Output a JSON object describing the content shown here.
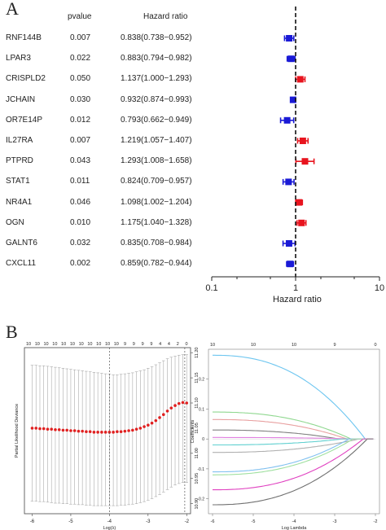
{
  "panel_a_letter": "A",
  "panel_b_letter": "B",
  "forest": {
    "pvalue_header": "pvalue",
    "hr_header": "Hazard ratio",
    "xlabel": "Hazard ratio",
    "xticks": [
      "0.1",
      "1",
      "10"
    ]
  },
  "colors": {
    "risk": "#e8141e",
    "protective": "#1a1ad6",
    "cv_points": "#e02020"
  },
  "chart_data": [
    {
      "type": "forest",
      "xlabel": "Hazard ratio",
      "x_scale": "log10",
      "xlim": [
        0.1,
        10
      ],
      "reference_line": 1,
      "rows": [
        {
          "gene": "RNF144B",
          "pvalue": "0.007",
          "hr_text": "0.838(0.738−0.952)",
          "hr": 0.838,
          "lo": 0.738,
          "hi": 0.952
        },
        {
          "gene": "LPAR3",
          "pvalue": "0.022",
          "hr_text": "0.883(0.794−0.982)",
          "hr": 0.883,
          "lo": 0.794,
          "hi": 0.982
        },
        {
          "gene": "CRISPLD2",
          "pvalue": "0.050",
          "hr_text": "1.137(1.000−1.293)",
          "hr": 1.137,
          "lo": 1.0,
          "hi": 1.293
        },
        {
          "gene": "JCHAIN",
          "pvalue": "0.030",
          "hr_text": "0.932(0.874−0.993)",
          "hr": 0.932,
          "lo": 0.874,
          "hi": 0.993
        },
        {
          "gene": "OR7E14P",
          "pvalue": "0.012",
          "hr_text": "0.793(0.662−0.949)",
          "hr": 0.793,
          "lo": 0.662,
          "hi": 0.949
        },
        {
          "gene": "IL27RA",
          "pvalue": "0.007",
          "hr_text": "1.219(1.057−1.407)",
          "hr": 1.219,
          "lo": 1.057,
          "hi": 1.407
        },
        {
          "gene": "PTPRD",
          "pvalue": "0.043",
          "hr_text": "1.293(1.008−1.658)",
          "hr": 1.293,
          "lo": 1.008,
          "hi": 1.658
        },
        {
          "gene": "STAT1",
          "pvalue": "0.011",
          "hr_text": "0.824(0.709−0.957)",
          "hr": 0.824,
          "lo": 0.709,
          "hi": 0.957
        },
        {
          "gene": "NR4A1",
          "pvalue": "0.046",
          "hr_text": "1.098(1.002−1.204)",
          "hr": 1.098,
          "lo": 1.002,
          "hi": 1.204
        },
        {
          "gene": "OGN",
          "pvalue": "0.010",
          "hr_text": "1.175(1.040−1.328)",
          "hr": 1.175,
          "lo": 1.04,
          "hi": 1.328
        },
        {
          "gene": "GALNT6",
          "pvalue": "0.032",
          "hr_text": "0.835(0.708−0.984)",
          "hr": 0.835,
          "lo": 0.708,
          "hi": 0.984
        },
        {
          "gene": "CXCL11",
          "pvalue": "0.002",
          "hr_text": "0.859(0.782−0.944)",
          "hr": 0.859,
          "lo": 0.782,
          "hi": 0.944
        }
      ]
    },
    {
      "type": "line",
      "subtype": "lasso-cv",
      "xlabel": "Log(λ)",
      "ylabel": "Partial Likelihood Deviance",
      "xlim": [
        -6.2,
        -1.9
      ],
      "ylim": [
        10.88,
        11.21
      ],
      "xticks": [
        -6,
        -5,
        -4,
        -3,
        -2
      ],
      "yticks": [
        10.9,
        10.95,
        11.0,
        11.05,
        11.1,
        11.15,
        11.2
      ],
      "top_ticks": [
        "10",
        "10",
        "10",
        "10",
        "10",
        "10",
        "10",
        "10",
        "10",
        "10",
        "10",
        "9",
        "9",
        "9",
        "9",
        "4",
        "4",
        "2",
        "0"
      ],
      "lambda_lines": [
        -4.0,
        -2.05
      ],
      "log_lambda": [
        -6.0,
        -5.9,
        -5.8,
        -5.7,
        -5.6,
        -5.5,
        -5.4,
        -5.3,
        -5.2,
        -5.1,
        -5.0,
        -4.9,
        -4.8,
        -4.7,
        -4.6,
        -4.5,
        -4.4,
        -4.3,
        -4.2,
        -4.1,
        -4.0,
        -3.9,
        -3.8,
        -3.7,
        -3.6,
        -3.5,
        -3.4,
        -3.3,
        -3.2,
        -3.1,
        -3.0,
        -2.9,
        -2.8,
        -2.7,
        -2.6,
        -2.5,
        -2.4,
        -2.3,
        -2.2,
        -2.1,
        -2.0
      ],
      "deviance": [
        11.05,
        11.05,
        11.049,
        11.049,
        11.048,
        11.048,
        11.047,
        11.047,
        11.046,
        11.046,
        11.045,
        11.045,
        11.044,
        11.044,
        11.043,
        11.043,
        11.042,
        11.042,
        11.042,
        11.042,
        11.042,
        11.042,
        11.043,
        11.043,
        11.044,
        11.045,
        11.046,
        11.048,
        11.05,
        11.053,
        11.056,
        11.06,
        11.065,
        11.071,
        11.077,
        11.084,
        11.09,
        11.095,
        11.099,
        11.101,
        11.1
      ],
      "upper": [
        11.175,
        11.175,
        11.174,
        11.174,
        11.173,
        11.172,
        11.171,
        11.17,
        11.169,
        11.168,
        11.167,
        11.166,
        11.165,
        11.164,
        11.163,
        11.162,
        11.161,
        11.16,
        11.159,
        11.158,
        11.157,
        11.156,
        11.156,
        11.157,
        11.158,
        11.159,
        11.16,
        11.162,
        11.164,
        11.166,
        11.169,
        11.172,
        11.176,
        11.18,
        11.184,
        11.188,
        11.191,
        11.193,
        11.195,
        11.196,
        11.196
      ],
      "lower": [
        10.905,
        10.905,
        10.904,
        10.904,
        10.903,
        10.902,
        10.901,
        10.901,
        10.9,
        10.9,
        10.899,
        10.899,
        10.898,
        10.898,
        10.897,
        10.897,
        10.896,
        10.896,
        10.896,
        10.896,
        10.896,
        10.896,
        10.896,
        10.897,
        10.897,
        10.898,
        10.899,
        10.9,
        10.902,
        10.904,
        10.907,
        10.91,
        10.914,
        10.918,
        10.923,
        10.928,
        10.933,
        10.937,
        10.94,
        10.942,
        10.942
      ]
    },
    {
      "type": "line",
      "subtype": "lasso-coefficient-path",
      "xlabel": "Log Lambda",
      "ylabel": "Coefficients",
      "xlim": [
        -6.1,
        -1.9
      ],
      "ylim": [
        -0.25,
        0.3
      ],
      "xticks": [
        -6,
        -5,
        -4,
        -3,
        -2
      ],
      "yticks": [
        -0.2,
        -0.1,
        0.0,
        0.1,
        0.2
      ],
      "top_ticks": [
        "10",
        "10",
        "10",
        "9",
        "0"
      ],
      "series": [
        {
          "color": "#6ec6f0",
          "start": 0.28,
          "zero_at": -2.25
        },
        {
          "color": "#90d890",
          "start": 0.09,
          "zero_at": -2.6
        },
        {
          "color": "#e8a0a0",
          "start": 0.065,
          "zero_at": -2.7
        },
        {
          "color": "#808080",
          "start": 0.03,
          "zero_at": -2.9
        },
        {
          "color": "#e080e0",
          "start": 0.005,
          "zero_at": -2.5
        },
        {
          "color": "#60d0d0",
          "start": -0.02,
          "zero_at": -2.8
        },
        {
          "color": "#b0b0b0",
          "start": -0.045,
          "zero_at": -2.4
        },
        {
          "color": "#80c0f0",
          "start": -0.11,
          "zero_at": -2.65
        },
        {
          "color": "#a0e0a0",
          "start": -0.12,
          "zero_at": -2.55
        },
        {
          "color": "#e040c0",
          "start": -0.17,
          "zero_at": -2.3
        },
        {
          "color": "#707070",
          "start": -0.22,
          "zero_at": -2.2
        }
      ]
    }
  ]
}
